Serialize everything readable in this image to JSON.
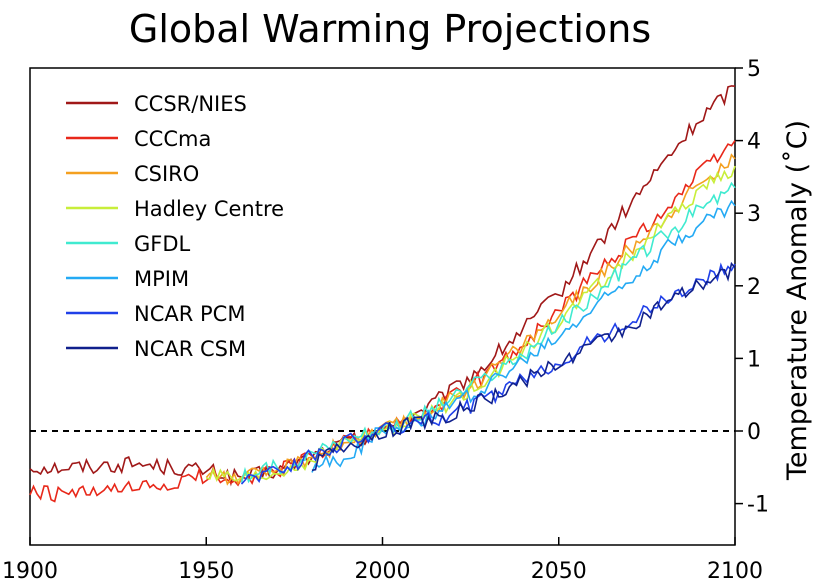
{
  "chart_data": {
    "type": "line",
    "title": "Global Warming Projections",
    "xlabel": "",
    "ylabel": "Temperature Anomaly (˚C)",
    "xlim": [
      1900,
      2100
    ],
    "ylim": [
      -1.5,
      5
    ],
    "x_ticks": [
      "1900",
      "1950",
      "2000",
      "2050",
      "2100"
    ],
    "y_ticks": [
      "-1",
      "0",
      "1",
      "2",
      "3",
      "4",
      "5"
    ],
    "reference_line": {
      "y": 0,
      "style": "dashed"
    },
    "grid": false,
    "legend_position": "top-left",
    "x": [
      1900,
      1910,
      1920,
      1930,
      1940,
      1950,
      1960,
      1970,
      1980,
      1990,
      2000,
      2010,
      2020,
      2030,
      2040,
      2050,
      2060,
      2070,
      2080,
      2090,
      2100
    ],
    "series": [
      {
        "name": "CCSR/NIES",
        "color": "#a01818",
        "values": [
          -0.5,
          -0.5,
          -0.48,
          -0.45,
          -0.5,
          -0.55,
          -0.65,
          -0.55,
          -0.35,
          -0.15,
          0.0,
          0.25,
          0.55,
          0.95,
          1.4,
          1.9,
          2.5,
          3.1,
          3.7,
          4.3,
          4.75
        ]
      },
      {
        "name": "CCCma",
        "color": "#e8281a",
        "values": [
          -0.85,
          -0.88,
          -0.85,
          -0.8,
          -0.75,
          -0.6,
          -0.65,
          -0.55,
          -0.35,
          -0.15,
          0.0,
          0.2,
          0.45,
          0.8,
          1.2,
          1.65,
          2.15,
          2.6,
          3.05,
          3.55,
          4.0
        ]
      },
      {
        "name": "CSIRO",
        "color": "#f4a020",
        "values": [
          null,
          null,
          null,
          null,
          null,
          -0.6,
          -0.65,
          -0.55,
          -0.35,
          -0.15,
          0.0,
          0.2,
          0.45,
          0.8,
          1.2,
          1.6,
          2.05,
          2.5,
          2.95,
          3.4,
          3.75
        ]
      },
      {
        "name": "Hadley Centre",
        "color": "#c8ee3a",
        "values": [
          null,
          null,
          null,
          null,
          null,
          -0.6,
          -0.7,
          -0.6,
          -0.4,
          -0.15,
          0.0,
          0.15,
          0.4,
          0.75,
          1.1,
          1.5,
          1.95,
          2.4,
          2.85,
          3.3,
          3.65
        ]
      },
      {
        "name": "GFDL",
        "color": "#40ead0",
        "values": [
          null,
          null,
          null,
          null,
          null,
          null,
          -0.65,
          -0.5,
          -0.3,
          -0.1,
          0.05,
          0.2,
          0.45,
          0.75,
          1.05,
          1.45,
          1.85,
          2.3,
          2.7,
          3.05,
          3.35
        ]
      },
      {
        "name": "MPIM",
        "color": "#24aaf4",
        "values": [
          null,
          null,
          null,
          null,
          null,
          null,
          null,
          null,
          -0.5,
          -0.35,
          0.0,
          0.15,
          0.35,
          0.65,
          0.95,
          1.3,
          1.7,
          2.1,
          2.5,
          2.85,
          3.1
        ]
      },
      {
        "name": "NCAR PCM",
        "color": "#2040e8",
        "values": [
          null,
          null,
          null,
          null,
          null,
          null,
          -0.65,
          -0.55,
          -0.35,
          -0.15,
          0.0,
          0.1,
          0.25,
          0.45,
          0.7,
          0.95,
          1.25,
          1.5,
          1.8,
          2.05,
          2.3
        ]
      },
      {
        "name": "NCAR CSM",
        "color": "#10208c",
        "values": [
          null,
          null,
          null,
          null,
          null,
          null,
          null,
          null,
          -0.45,
          -0.2,
          0.0,
          0.1,
          0.25,
          0.45,
          0.7,
          0.95,
          1.2,
          1.45,
          1.75,
          2.0,
          2.25
        ]
      }
    ]
  }
}
